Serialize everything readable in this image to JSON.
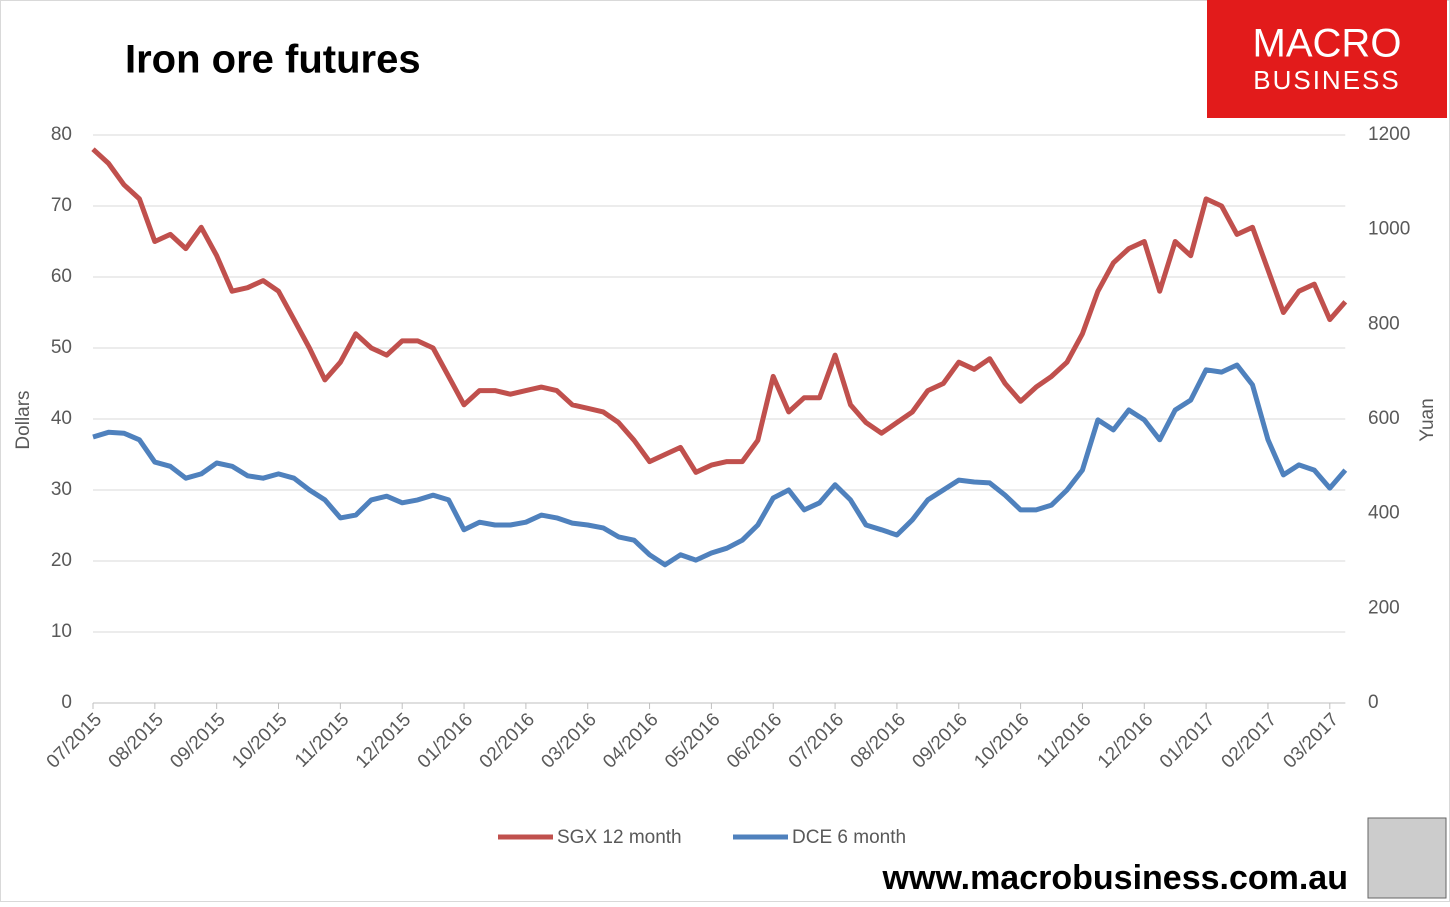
{
  "chart_data": {
    "type": "line",
    "title": "Iron ore futures",
    "logo": [
      "MACRO",
      "BUSINESS"
    ],
    "footer": "www.macrobusiness.com.au",
    "ylabel": "Dollars",
    "y2label": "Yuan",
    "categories": [
      "07/2015",
      null,
      null,
      null,
      "08/2015",
      null,
      null,
      null,
      "09/2015",
      null,
      null,
      null,
      "10/2015",
      null,
      null,
      null,
      "11/2015",
      null,
      null,
      null,
      "12/2015",
      null,
      null,
      null,
      "01/2016",
      null,
      null,
      null,
      "02/2016",
      null,
      null,
      null,
      "03/2016",
      null,
      null,
      null,
      "04/2016",
      null,
      null,
      null,
      "05/2016",
      null,
      null,
      null,
      "06/2016",
      null,
      null,
      null,
      "07/2016",
      null,
      null,
      null,
      "08/2016",
      null,
      null,
      null,
      "09/2016",
      null,
      null,
      null,
      "10/2016",
      null,
      null,
      null,
      "11/2016",
      null,
      null,
      null,
      "12/2016",
      null,
      null,
      null,
      "01/2017",
      null,
      null,
      null,
      "02/2017",
      null,
      null,
      null,
      "03/2017",
      null
    ],
    "series": [
      {
        "name": "SGX 12 month",
        "color": "#c0504d",
        "values": [
          78,
          76,
          73,
          71,
          65,
          66,
          64,
          67,
          63,
          58,
          58.5,
          59.5,
          58,
          54,
          50,
          45.5,
          48,
          52,
          50,
          49,
          51,
          51,
          50,
          46,
          42,
          44,
          44,
          43.5,
          44,
          44.5,
          44,
          42,
          41.5,
          41,
          39.5,
          37,
          34,
          35,
          36,
          32.5,
          33.5,
          34,
          34,
          37,
          46,
          41,
          43,
          43,
          49,
          42,
          39.5,
          38,
          39.5,
          41,
          44,
          45,
          48,
          47,
          48.5,
          45,
          42.5,
          44.5,
          46,
          48,
          52,
          58,
          62,
          64,
          65,
          58,
          65,
          63,
          71,
          70,
          66,
          67,
          61,
          55,
          58,
          59,
          54,
          56.5
        ]
      },
      {
        "name": "DCE 6 month",
        "color": "#4f81bd",
        "axis": "y2",
        "values": [
          562,
          572,
          570,
          556,
          509,
          500,
          475,
          484,
          507,
          500,
          480,
          475,
          484,
          475,
          450,
          429,
          391,
          397,
          429,
          437,
          423,
          429,
          439,
          429,
          366,
          382,
          376,
          376,
          382,
          397,
          391,
          380,
          376,
          370,
          351,
          344,
          313,
          292,
          313,
          302,
          317,
          327,
          344,
          376,
          433,
          450,
          408,
          423,
          461,
          429,
          376,
          366,
          355,
          387,
          429,
          450,
          471,
          467,
          465,
          439,
          408,
          408,
          418,
          450,
          492,
          598,
          577,
          619,
          598,
          556,
          619,
          640,
          704,
          699,
          714,
          672,
          556,
          482,
          503,
          492,
          454,
          492
        ]
      }
    ],
    "ylim": [
      0,
      80
    ],
    "yticks": [
      0,
      10,
      20,
      30,
      40,
      50,
      60,
      70,
      80
    ],
    "y2lim": [
      0,
      1200
    ],
    "y2ticks": [
      0,
      200,
      400,
      600,
      800,
      1000,
      1200
    ],
    "grid": true,
    "legend": "bottom"
  }
}
